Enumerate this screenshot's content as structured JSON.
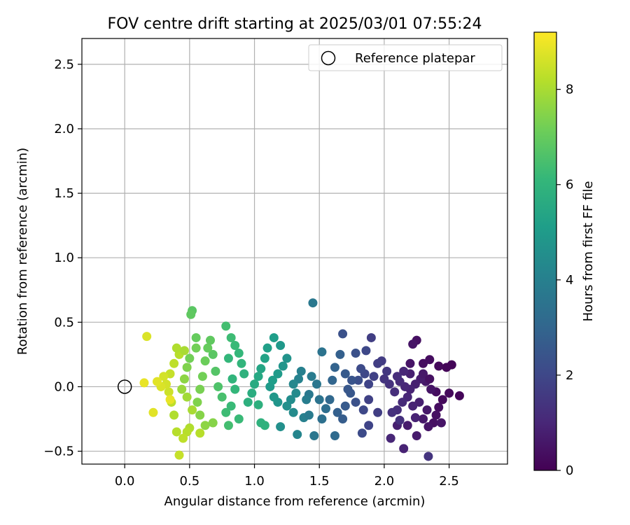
{
  "chart_data": {
    "type": "scatter",
    "title": "FOV centre drift starting at 2025/03/01 07:55:24",
    "xlabel": "Angular distance from reference (arcmin)",
    "ylabel": "Rotation from reference (arcmin)",
    "xlim": [
      -0.33,
      2.95
    ],
    "ylim": [
      -0.6,
      2.7
    ],
    "xticks": [
      0.0,
      0.5,
      1.0,
      1.5,
      2.0,
      2.5
    ],
    "xtick_labels": [
      "0.0",
      "0.5",
      "1.0",
      "1.5",
      "2.0",
      "2.5"
    ],
    "yticks": [
      -0.5,
      0.0,
      0.5,
      1.0,
      1.5,
      2.0,
      2.5
    ],
    "ytick_labels": [
      "−0.5",
      "0.0",
      "0.5",
      "1.0",
      "1.5",
      "2.0",
      "2.5"
    ],
    "grid": true,
    "legend": {
      "placement": "top-right",
      "entries": [
        "Reference platepar"
      ]
    },
    "reference_point": {
      "x": 0.0,
      "y": 0.0
    },
    "colorbar": {
      "label": "Hours from first FF file",
      "min": 0,
      "max": 9.2,
      "ticks": [
        0,
        2,
        4,
        6,
        8
      ],
      "tick_labels": [
        "0",
        "2",
        "4",
        "6",
        "8"
      ],
      "colormap": "viridis",
      "colormap_stops": [
        "#440154",
        "#482878",
        "#3e4989",
        "#31688e",
        "#26828e",
        "#1f9e89",
        "#35b779",
        "#6ece58",
        "#b5de2b",
        "#fde725"
      ]
    },
    "series": [
      {
        "points": [
          [
            2.52,
            0.17
          ],
          [
            2.48,
            0.15
          ],
          [
            2.42,
            0.16
          ],
          [
            2.35,
            0.21
          ],
          [
            2.3,
            0.18
          ],
          [
            2.25,
            0.36
          ],
          [
            2.22,
            0.33
          ],
          [
            2.2,
            0.18
          ],
          [
            2.58,
            -0.07
          ],
          [
            2.5,
            -0.05
          ],
          [
            2.45,
            -0.1
          ],
          [
            2.42,
            -0.16
          ],
          [
            2.4,
            -0.22
          ],
          [
            2.38,
            -0.28
          ],
          [
            2.34,
            -0.31
          ],
          [
            2.3,
            -0.25
          ],
          [
            2.25,
            -0.38
          ],
          [
            2.15,
            -0.48
          ],
          [
            2.34,
            -0.54
          ],
          [
            2.05,
            -0.4
          ],
          [
            2.1,
            -0.3
          ],
          [
            2.18,
            -0.3
          ],
          [
            2.44,
            -0.28
          ],
          [
            2.4,
            -0.04
          ],
          [
            2.36,
            -0.02
          ],
          [
            2.32,
            0.04
          ],
          [
            2.28,
            0.06
          ],
          [
            2.24,
            0.02
          ],
          [
            2.2,
            -0.02
          ],
          [
            2.16,
            0.0
          ],
          [
            2.12,
            0.04
          ],
          [
            2.08,
            -0.04
          ],
          [
            2.04,
            0.02
          ],
          [
            2.0,
            0.06
          ],
          [
            2.27,
            -0.12
          ],
          [
            2.22,
            -0.15
          ],
          [
            2.18,
            -0.08
          ],
          [
            2.14,
            -0.12
          ],
          [
            2.1,
            -0.18
          ],
          [
            2.06,
            -0.2
          ],
          [
            2.2,
            0.1
          ],
          [
            2.15,
            0.12
          ],
          [
            2.1,
            0.08
          ],
          [
            2.3,
            0.1
          ],
          [
            2.35,
            0.06
          ],
          [
            2.33,
            -0.18
          ],
          [
            2.24,
            -0.24
          ],
          [
            2.12,
            -0.26
          ],
          [
            2.02,
            0.12
          ],
          [
            1.98,
            0.2
          ],
          [
            1.95,
            0.18
          ],
          [
            1.92,
            0.08
          ],
          [
            1.88,
            0.02
          ],
          [
            1.85,
            0.1
          ],
          [
            1.82,
            0.14
          ],
          [
            1.8,
            0.05
          ],
          [
            1.9,
            0.38
          ],
          [
            1.78,
            0.26
          ],
          [
            1.86,
            0.28
          ],
          [
            1.88,
            -0.1
          ],
          [
            1.84,
            -0.18
          ],
          [
            1.83,
            -0.36
          ],
          [
            1.88,
            -0.3
          ],
          [
            1.95,
            -0.2
          ],
          [
            1.78,
            -0.12
          ],
          [
            1.74,
            -0.05
          ],
          [
            1.7,
            -0.15
          ],
          [
            1.75,
            0.05
          ],
          [
            1.7,
            0.1
          ],
          [
            1.68,
            0.41
          ],
          [
            1.66,
            0.25
          ],
          [
            1.62,
            0.15
          ],
          [
            1.6,
            0.05
          ],
          [
            1.58,
            -0.1
          ],
          [
            1.64,
            -0.2
          ],
          [
            1.68,
            -0.25
          ],
          [
            1.72,
            -0.02
          ],
          [
            1.62,
            -0.38
          ],
          [
            1.55,
            -0.17
          ],
          [
            1.52,
            -0.25
          ],
          [
            1.5,
            -0.1
          ],
          [
            1.52,
            0.27
          ],
          [
            1.48,
            0.02
          ],
          [
            1.45,
            0.65
          ],
          [
            1.44,
            0.08
          ],
          [
            1.42,
            -0.06
          ],
          [
            1.4,
            -0.1
          ],
          [
            1.38,
            -0.24
          ],
          [
            1.42,
            -0.22
          ],
          [
            1.46,
            -0.38
          ],
          [
            1.36,
            0.12
          ],
          [
            1.34,
            0.06
          ],
          [
            1.3,
            0.02
          ],
          [
            1.32,
            -0.05
          ],
          [
            1.28,
            -0.1
          ],
          [
            1.25,
            -0.15
          ],
          [
            1.3,
            -0.2
          ],
          [
            1.33,
            -0.37
          ],
          [
            1.2,
            -0.31
          ],
          [
            1.18,
            -0.12
          ],
          [
            1.15,
            -0.08
          ],
          [
            1.12,
            0.0
          ],
          [
            1.14,
            0.05
          ],
          [
            1.18,
            0.1
          ],
          [
            1.22,
            0.16
          ],
          [
            1.25,
            0.22
          ],
          [
            1.2,
            0.32
          ],
          [
            1.15,
            0.38
          ],
          [
            1.1,
            0.3
          ],
          [
            1.08,
            0.22
          ],
          [
            1.05,
            0.14
          ],
          [
            1.03,
            0.08
          ],
          [
            1.0,
            0.02
          ],
          [
            0.98,
            -0.05
          ],
          [
            1.03,
            -0.14
          ],
          [
            1.05,
            -0.28
          ],
          [
            1.08,
            -0.3
          ],
          [
            0.95,
            -0.12
          ],
          [
            0.92,
            0.1
          ],
          [
            0.9,
            0.18
          ],
          [
            0.88,
            0.26
          ],
          [
            0.85,
            0.32
          ],
          [
            0.82,
            0.38
          ],
          [
            0.78,
            0.47
          ],
          [
            0.8,
            0.22
          ],
          [
            0.83,
            0.06
          ],
          [
            0.85,
            -0.02
          ],
          [
            0.82,
            -0.15
          ],
          [
            0.78,
            -0.2
          ],
          [
            0.8,
            -0.3
          ],
          [
            0.88,
            -0.25
          ],
          [
            0.75,
            -0.08
          ],
          [
            0.72,
            0.0
          ],
          [
            0.7,
            0.12
          ],
          [
            0.68,
            0.25
          ],
          [
            0.66,
            0.36
          ],
          [
            0.64,
            0.3
          ],
          [
            0.62,
            0.2
          ],
          [
            0.6,
            0.08
          ],
          [
            0.58,
            -0.02
          ],
          [
            0.56,
            -0.12
          ],
          [
            0.58,
            -0.22
          ],
          [
            0.62,
            -0.3
          ],
          [
            0.68,
            -0.28
          ],
          [
            0.52,
            0.59
          ],
          [
            0.51,
            0.56
          ],
          [
            0.55,
            0.38
          ],
          [
            0.5,
            0.22
          ],
          [
            0.48,
            0.15
          ],
          [
            0.46,
            0.06
          ],
          [
            0.44,
            -0.02
          ],
          [
            0.48,
            -0.08
          ],
          [
            0.52,
            -0.18
          ],
          [
            0.5,
            -0.32
          ],
          [
            0.48,
            -0.35
          ],
          [
            0.45,
            -0.4
          ],
          [
            0.42,
            -0.53
          ],
          [
            0.4,
            -0.35
          ],
          [
            0.38,
            -0.22
          ],
          [
            0.36,
            -0.12
          ],
          [
            0.34,
            -0.04
          ],
          [
            0.32,
            0.02
          ],
          [
            0.35,
            0.1
          ],
          [
            0.38,
            0.18
          ],
          [
            0.42,
            0.25
          ],
          [
            0.4,
            0.3
          ],
          [
            0.46,
            0.28
          ],
          [
            0.3,
            0.08
          ],
          [
            0.28,
            0.0
          ],
          [
            0.25,
            0.04
          ],
          [
            0.22,
            -0.2
          ],
          [
            0.17,
            0.39
          ],
          [
            0.15,
            0.03
          ],
          [
            0.58,
            -0.36
          ],
          [
            0.55,
            0.3
          ],
          [
            0.35,
            -0.1
          ]
        ],
        "hours": [
          0.1,
          0.1,
          0.2,
          0.3,
          0.3,
          0.4,
          0.5,
          0.5,
          0.1,
          0.2,
          0.2,
          0.3,
          0.4,
          0.4,
          0.5,
          0.6,
          0.7,
          0.9,
          1.4,
          1.0,
          0.8,
          0.7,
          0.5,
          0.3,
          0.5,
          0.6,
          0.7,
          0.8,
          0.9,
          1.0,
          1.1,
          1.2,
          1.3,
          1.4,
          0.8,
          0.9,
          1.0,
          1.1,
          1.2,
          1.3,
          0.8,
          1.0,
          1.2,
          0.6,
          0.4,
          0.6,
          0.9,
          1.3,
          1.5,
          1.6,
          1.7,
          1.8,
          1.9,
          2.0,
          2.1,
          2.2,
          1.7,
          2.3,
          2.0,
          1.8,
          2.0,
          2.1,
          1.9,
          1.7,
          2.3,
          2.5,
          2.6,
          2.4,
          2.6,
          2.3,
          2.8,
          2.9,
          3.0,
          3.1,
          2.8,
          2.7,
          2.5,
          3.2,
          3.3,
          3.4,
          3.5,
          3.5,
          3.6,
          3.7,
          3.8,
          3.7,
          3.9,
          4.0,
          3.8,
          3.6,
          4.0,
          4.1,
          4.3,
          4.4,
          4.5,
          4.6,
          4.4,
          4.2,
          4.6,
          4.8,
          4.9,
          5.0,
          5.1,
          5.0,
          4.8,
          4.7,
          4.9,
          5.1,
          5.2,
          5.3,
          5.4,
          5.5,
          5.6,
          5.7,
          5.8,
          5.9,
          5.9,
          5.8,
          5.9,
          6.0,
          6.1,
          6.2,
          6.3,
          6.4,
          6.1,
          6.0,
          6.1,
          6.2,
          6.3,
          6.4,
          6.2,
          6.5,
          6.6,
          6.7,
          6.8,
          6.9,
          7.0,
          7.1,
          7.2,
          7.3,
          7.4,
          7.5,
          7.6,
          7.5,
          6.8,
          6.9,
          7.0,
          7.2,
          7.4,
          7.6,
          7.8,
          7.9,
          8.0,
          8.1,
          8.2,
          8.3,
          8.4,
          8.2,
          8.1,
          8.3,
          8.5,
          8.6,
          8.4,
          8.3,
          8.2,
          8.1,
          8.0,
          8.6,
          8.7,
          8.8,
          8.8,
          8.7,
          8.9,
          8.2,
          7.2,
          8.9
        ]
      }
    ]
  }
}
